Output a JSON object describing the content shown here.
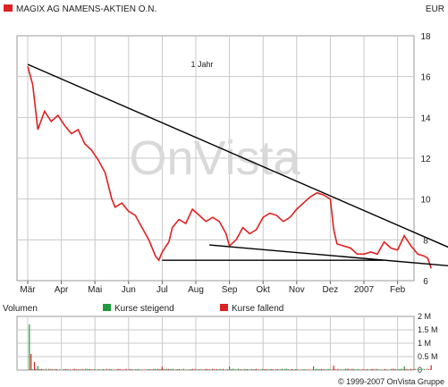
{
  "header": {
    "title": "MAGIX AG NAMENS-AKTIEN O.N.",
    "currency": "EUR",
    "period_label": "1 Jahr"
  },
  "watermark": "OnVista",
  "volume_legend": {
    "title": "Volumen",
    "rising": "Kurse steigend",
    "falling": "Kurse fallend"
  },
  "copyright": "© 1999-2007 OnVista Gruppe",
  "colors": {
    "rising": "#1f9a3a",
    "falling": "#dd2222",
    "price_line": "#dd2222",
    "trend_line": "#000000",
    "grid": "#c8c8c8",
    "plot_bg": "#ffffff",
    "border": "#9a9a9a",
    "watermark": "#d9d9d9"
  },
  "chart_data": [
    {
      "type": "line",
      "name": "price",
      "x_labels": [
        "Mär",
        "Apr",
        "Mai",
        "Jun",
        "Jul",
        "Aug",
        "Sep",
        "Okt",
        "Nov",
        "Dez",
        "2007",
        "Feb"
      ],
      "y_ticks": [
        6,
        8,
        10,
        12,
        14,
        16,
        18
      ],
      "ylim": [
        6,
        18
      ],
      "grid": true,
      "points": [
        [
          0.0,
          16.5
        ],
        [
          0.15,
          15.6
        ],
        [
          0.3,
          13.4
        ],
        [
          0.5,
          14.3
        ],
        [
          0.7,
          13.8
        ],
        [
          0.9,
          14.1
        ],
        [
          1.1,
          13.6
        ],
        [
          1.3,
          13.2
        ],
        [
          1.5,
          13.4
        ],
        [
          1.7,
          12.7
        ],
        [
          1.9,
          12.4
        ],
        [
          2.1,
          11.9
        ],
        [
          2.3,
          11.3
        ],
        [
          2.5,
          10.0
        ],
        [
          2.6,
          9.6
        ],
        [
          2.8,
          9.8
        ],
        [
          3.0,
          9.4
        ],
        [
          3.2,
          9.2
        ],
        [
          3.4,
          8.6
        ],
        [
          3.6,
          8.0
        ],
        [
          3.8,
          7.2
        ],
        [
          3.9,
          7.0
        ],
        [
          4.0,
          7.4
        ],
        [
          4.2,
          7.9
        ],
        [
          4.3,
          8.6
        ],
        [
          4.5,
          9.0
        ],
        [
          4.7,
          8.8
        ],
        [
          4.9,
          9.5
        ],
        [
          5.1,
          9.2
        ],
        [
          5.3,
          8.9
        ],
        [
          5.5,
          9.1
        ],
        [
          5.7,
          8.9
        ],
        [
          5.9,
          8.3
        ],
        [
          6.0,
          7.7
        ],
        [
          6.2,
          8.0
        ],
        [
          6.4,
          8.6
        ],
        [
          6.6,
          8.3
        ],
        [
          6.8,
          8.5
        ],
        [
          7.0,
          9.1
        ],
        [
          7.2,
          9.3
        ],
        [
          7.4,
          9.2
        ],
        [
          7.6,
          8.9
        ],
        [
          7.8,
          9.1
        ],
        [
          8.0,
          9.5
        ],
        [
          8.2,
          9.8
        ],
        [
          8.4,
          10.1
        ],
        [
          8.6,
          10.3
        ],
        [
          8.8,
          10.2
        ],
        [
          9.0,
          10.0
        ],
        [
          9.1,
          8.5
        ],
        [
          9.2,
          7.8
        ],
        [
          9.4,
          7.7
        ],
        [
          9.6,
          7.6
        ],
        [
          9.8,
          7.3
        ],
        [
          10.0,
          7.3
        ],
        [
          10.2,
          7.4
        ],
        [
          10.4,
          7.3
        ],
        [
          10.6,
          7.9
        ],
        [
          10.8,
          7.6
        ],
        [
          11.0,
          7.5
        ],
        [
          11.2,
          8.2
        ],
        [
          11.4,
          7.7
        ],
        [
          11.6,
          7.3
        ],
        [
          11.8,
          7.2
        ],
        [
          11.9,
          7.1
        ],
        [
          12.0,
          6.6
        ]
      ],
      "trendlines": [
        {
          "from": [
            0.0,
            16.6
          ],
          "to": [
            13.4,
            7.0
          ]
        },
        {
          "from": [
            4.0,
            7.0
          ],
          "to": [
            10.6,
            7.0
          ]
        },
        {
          "from": [
            5.4,
            7.75
          ],
          "to": [
            13.4,
            6.6
          ]
        }
      ]
    },
    {
      "type": "bar",
      "name": "volume",
      "y_ticks": [
        "0",
        "0.5 M",
        "1 M",
        "1.5 M",
        "2 M"
      ],
      "ylim": [
        0,
        2000000
      ],
      "spikes": [
        {
          "x": 0.05,
          "v": 1700000,
          "dir": "up"
        },
        {
          "x": 0.1,
          "v": 600000,
          "dir": "down"
        },
        {
          "x": 0.2,
          "v": 300000,
          "dir": "down"
        },
        {
          "x": 0.3,
          "v": 150000,
          "dir": "up"
        },
        {
          "x": 4.0,
          "v": 120000,
          "dir": "down"
        },
        {
          "x": 6.0,
          "v": 130000,
          "dir": "up"
        },
        {
          "x": 8.5,
          "v": 140000,
          "dir": "up"
        },
        {
          "x": 9.1,
          "v": 160000,
          "dir": "down"
        },
        {
          "x": 11.2,
          "v": 140000,
          "dir": "up"
        },
        {
          "x": 12.0,
          "v": 180000,
          "dir": "down"
        }
      ]
    }
  ]
}
